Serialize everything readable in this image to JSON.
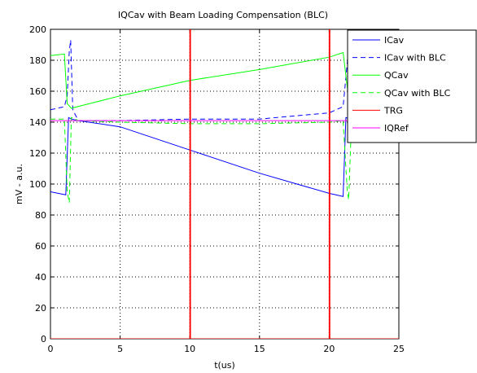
{
  "chart_data": {
    "type": "line",
    "title": "IQCav with Beam Loading Compensation (BLC)",
    "xlabel": "t(us)",
    "ylabel": "mV - a.u.",
    "xlim": [
      0,
      25
    ],
    "ylim": [
      0,
      200
    ],
    "xticks": [
      0,
      5,
      10,
      15,
      20,
      25
    ],
    "yticks": [
      0,
      20,
      40,
      60,
      80,
      100,
      120,
      140,
      160,
      180,
      200
    ],
    "grid": true,
    "legend_position": "top-right",
    "series": [
      {
        "name": "ICav",
        "color": "#0000ff",
        "dash": "solid",
        "points": [
          [
            0,
            95
          ],
          [
            1.1,
            93
          ],
          [
            1.3,
            143
          ],
          [
            1.5,
            142
          ],
          [
            2,
            141
          ],
          [
            5,
            137
          ],
          [
            10,
            122
          ],
          [
            15,
            107
          ],
          [
            20,
            94
          ],
          [
            21,
            92
          ],
          [
            21.2,
            143
          ],
          [
            21.5,
            142
          ],
          [
            22,
            140
          ],
          [
            22.2,
            141
          ]
        ]
      },
      {
        "name": "ICav with BLC",
        "color": "#0000ff",
        "dash": "dashed",
        "points": [
          [
            0,
            148
          ],
          [
            1,
            150
          ],
          [
            1.2,
            157
          ],
          [
            1.35,
            186
          ],
          [
            1.45,
            193
          ],
          [
            1.6,
            148
          ],
          [
            2,
            141
          ],
          [
            5,
            141
          ],
          [
            10,
            142
          ],
          [
            15,
            142
          ],
          [
            20,
            146
          ],
          [
            21,
            150
          ],
          [
            21.4,
            188
          ],
          [
            21.5,
            190
          ],
          [
            21.7,
            150
          ],
          [
            22,
            146
          ],
          [
            22.2,
            144
          ]
        ]
      },
      {
        "name": "QCav",
        "color": "#00ff00",
        "dash": "solid",
        "points": [
          [
            0,
            183
          ],
          [
            1,
            184
          ],
          [
            1.2,
            152
          ],
          [
            1.5,
            149
          ],
          [
            5,
            157
          ],
          [
            10,
            167
          ],
          [
            15,
            174
          ],
          [
            20,
            182
          ],
          [
            21,
            185
          ],
          [
            21.4,
            155
          ],
          [
            21.8,
            151
          ],
          [
            22.2,
            151
          ]
        ]
      },
      {
        "name": "QCav with BLC",
        "color": "#00ff00",
        "dash": "dashed",
        "points": [
          [
            0,
            142
          ],
          [
            1,
            142
          ],
          [
            1.2,
            95
          ],
          [
            1.35,
            88
          ],
          [
            1.5,
            143
          ],
          [
            2,
            141
          ],
          [
            5,
            140
          ],
          [
            10,
            139
          ],
          [
            15,
            139
          ],
          [
            20,
            140
          ],
          [
            21,
            141
          ],
          [
            21.3,
            95
          ],
          [
            21.4,
            90
          ],
          [
            21.6,
            140
          ],
          [
            22,
            141
          ],
          [
            22.2,
            141
          ]
        ]
      },
      {
        "name": "TRG",
        "color": "#ff0000",
        "dash": "solid",
        "points": [
          [
            0,
            0
          ],
          [
            10,
            0
          ],
          [
            10,
            200
          ],
          [
            10.05,
            200
          ],
          [
            10.05,
            0
          ],
          [
            20,
            0
          ],
          [
            20,
            200
          ],
          [
            20.05,
            200
          ],
          [
            20.05,
            0
          ],
          [
            25,
            0
          ]
        ]
      },
      {
        "name": "IQRef",
        "color": "#ff00ff",
        "dash": "solid",
        "points": [
          [
            0,
            141
          ],
          [
            25,
            141
          ]
        ]
      }
    ]
  }
}
